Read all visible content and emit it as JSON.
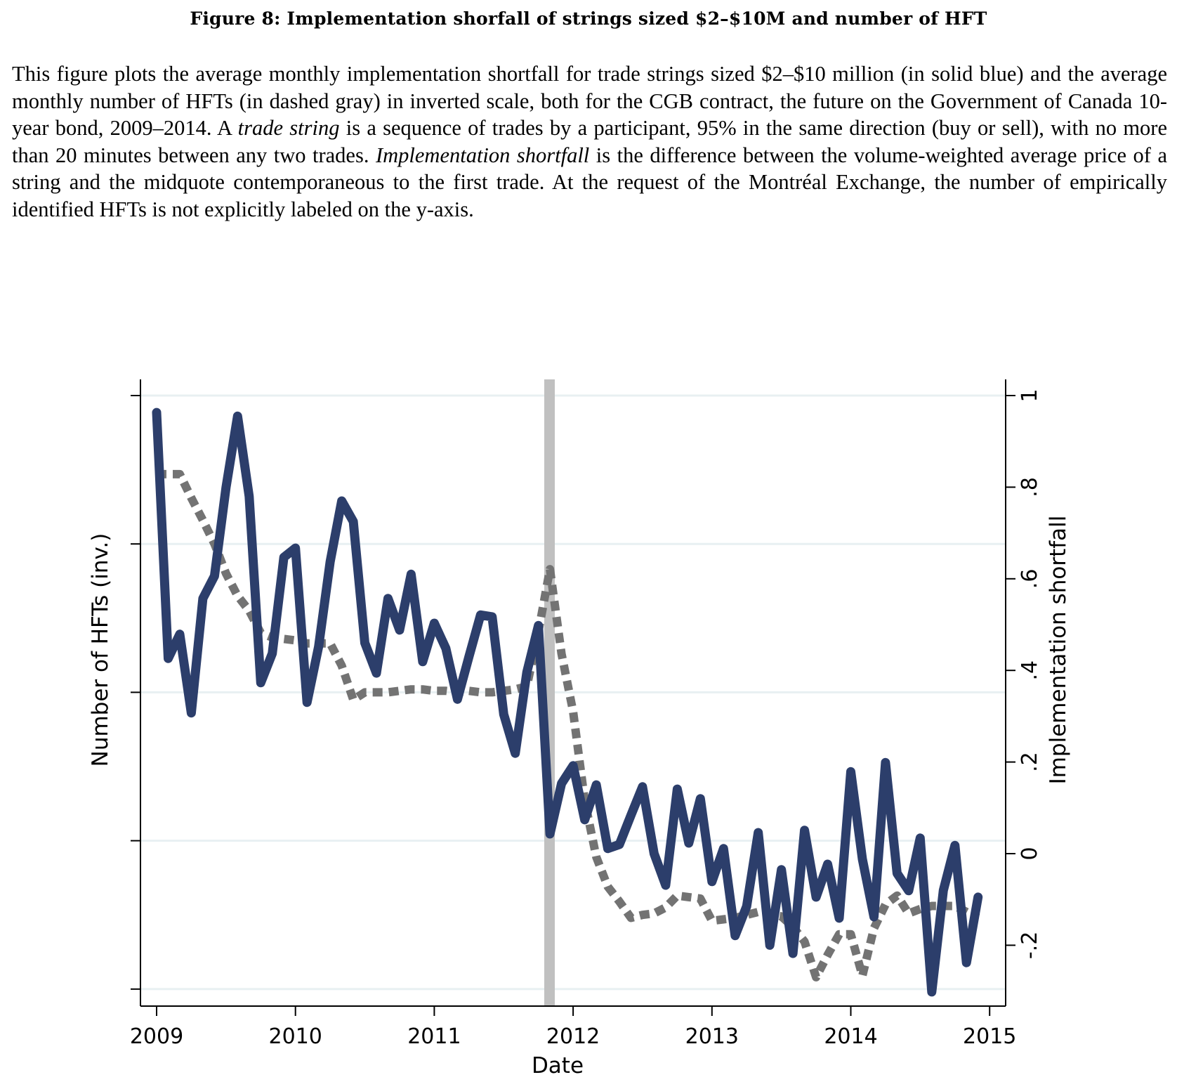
{
  "figure": {
    "title": "Figure 8: Implementation shorfall of strings sized $2–$10M and number of HFT",
    "caption_parts": [
      {
        "text": "This figure plots the average monthly implementation shortfall for trade strings sized $2–$10 million (in solid blue) and the average monthly number of HFTs (in dashed gray) in inverted scale, both for the CGB contract, the future on the Government of Canada 10-year bond, 2009–2014. A ",
        "italic": false
      },
      {
        "text": "trade string",
        "italic": true
      },
      {
        "text": " is a sequence of trades by a participant, 95% in the same direction (buy or sell), with no more than 20 minutes between any two trades. ",
        "italic": false
      },
      {
        "text": "Implementation shortfall",
        "italic": true
      },
      {
        "text": " is the difference between the volume-weighted average price of a string and the midquote contemporaneous to the first trade. At the request of the Montréal Exchange, the number of empirically identified HFTs is not explicitly labeled on the y-axis.",
        "italic": false
      }
    ]
  },
  "chart_data": {
    "type": "line",
    "title": "",
    "xlabel": "Date",
    "ylabel_left": "Number of HFTs (inv.)",
    "ylabel_right": "Implementation shortfall",
    "x_ticks": [
      "2009",
      "2010",
      "2011",
      "2012",
      "2013",
      "2014",
      "2015"
    ],
    "x_range": [
      2009,
      2015
    ],
    "y_right_ticks": [
      "1",
      ".8",
      ".6",
      ".4",
      ".2",
      "0",
      "-.2"
    ],
    "y_right_tick_values": [
      1,
      0.8,
      0.6,
      0.4,
      0.2,
      0,
      -0.2
    ],
    "y_right_range": [
      -0.3,
      1.0
    ],
    "y_left_ticks_unlabeled": 5,
    "y_left_note": "HFT count shown in inverted scale; values below are positions in units of left-axis tick intervals (0 = top tick, 4 = bottom tick), since actual counts are not labeled",
    "grid": true,
    "legend": "none",
    "event_marker": {
      "x": 2011.83,
      "label": "",
      "color": "#c0c0c0"
    },
    "colors": {
      "shortfall": "#2c3e6b",
      "hft": "#737373",
      "grid": "#e8f0f2",
      "axis": "#000000"
    },
    "x_start": 2009.0,
    "x_step_months": 1,
    "series": [
      {
        "name": "Implementation shortfall ($2–$10M strings)",
        "style": "solid",
        "axis": "right",
        "values": [
          0.963,
          0.426,
          0.479,
          0.307,
          0.557,
          0.606,
          0.8,
          0.955,
          0.78,
          0.373,
          0.437,
          0.647,
          0.667,
          0.33,
          0.452,
          0.637,
          0.77,
          0.725,
          0.46,
          0.394,
          0.557,
          0.488,
          0.61,
          0.419,
          0.503,
          0.448,
          0.337,
          0.43,
          0.521,
          0.517,
          0.304,
          0.219,
          0.396,
          0.498,
          0.043,
          0.153,
          0.192,
          0.074,
          0.15,
          0.011,
          0.02,
          0.084,
          0.146,
          0.0,
          -0.069,
          0.141,
          0.023,
          0.12,
          -0.061,
          0.011,
          -0.179,
          -0.115,
          0.046,
          -0.2,
          -0.035,
          -0.218,
          0.051,
          -0.095,
          -0.023,
          -0.141,
          0.179,
          -0.012,
          -0.138,
          0.199,
          -0.043,
          -0.081,
          0.034,
          -0.302,
          -0.08,
          0.018,
          -0.238,
          -0.095
        ]
      },
      {
        "name": "Number of HFTs (inverted)",
        "style": "dashed",
        "axis": "left",
        "values": [
          0.53,
          0.53,
          0.53,
          0.69,
          0.84,
          1.0,
          1.2,
          1.35,
          1.45,
          1.6,
          1.63,
          1.64,
          1.65,
          1.67,
          1.67,
          1.67,
          1.82,
          2.05,
          2.0,
          2.0,
          2.0,
          1.99,
          1.98,
          1.98,
          1.99,
          1.99,
          2.0,
          1.99,
          2.0,
          2.0,
          1.99,
          1.98,
          1.96,
          1.59,
          1.17,
          1.74,
          2.13,
          2.73,
          3.11,
          3.31,
          3.41,
          3.52,
          3.5,
          3.49,
          3.45,
          3.37,
          3.38,
          3.39,
          3.54,
          3.53,
          3.52,
          3.5,
          3.48,
          3.5,
          3.51,
          3.58,
          3.68,
          3.92,
          3.77,
          3.63,
          3.63,
          3.91,
          3.59,
          3.43,
          3.37,
          3.49,
          3.46,
          3.44,
          3.44,
          3.44,
          3.48,
          3.52
        ]
      }
    ]
  }
}
